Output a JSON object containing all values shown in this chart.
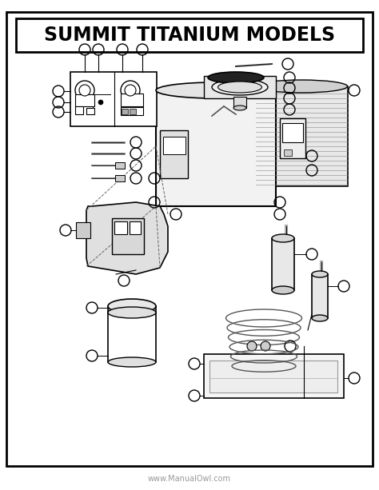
{
  "title": "SUMMIT TITANIUM MODELS",
  "watermark": "www.ManualOwl.com",
  "bg_color": "#ffffff",
  "border_color": "#000000",
  "title_fontsize": 17,
  "watermark_fontsize": 7,
  "fig_width": 4.74,
  "fig_height": 6.13,
  "dpi": 100,
  "circle_r": 7,
  "circle_lw": 1.0
}
